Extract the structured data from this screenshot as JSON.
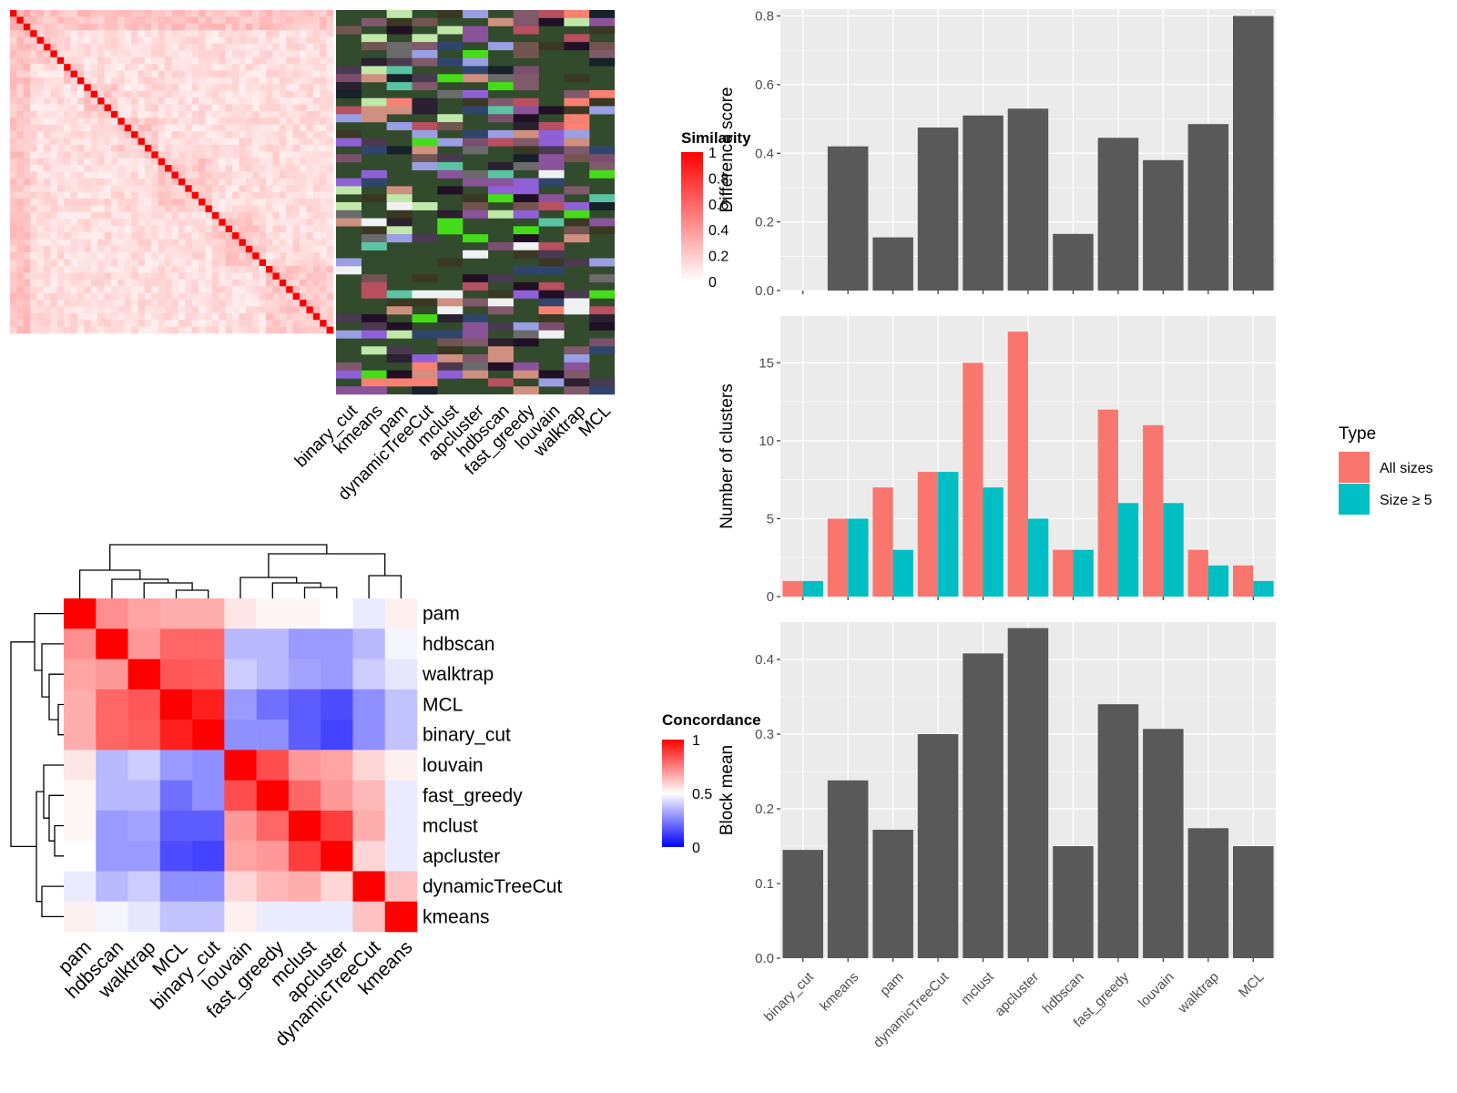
{
  "chart_data": [
    {
      "type": "heatmap",
      "panel": "cell-similarity",
      "legend": {
        "title": "Similarity",
        "ticks": [
          "1",
          "0.8",
          "0.6",
          "0.4",
          "0.2",
          "0"
        ],
        "range": [
          0,
          1
        ]
      },
      "colors": {
        "low": "#ffffff",
        "high": "#ff0000"
      },
      "n_cells": 48
    },
    {
      "type": "heatmap",
      "panel": "cluster-assignments",
      "columns": [
        "binary_cut",
        "kmeans",
        "pam",
        "dynamicTreeCut",
        "mclust",
        "apcluster",
        "hdbscan",
        "fast_greedy",
        "louvain",
        "walktrap",
        "MCL"
      ],
      "colors": {
        "background": "#314b2c",
        "palette": [
          "#fa8072",
          "#16212a",
          "#80596b",
          "#30456e",
          "#725550",
          "#3a3822",
          "#8c539d",
          "#eef2f3",
          "#d09080",
          "#7b4e6e",
          "#211025",
          "#9a9fe4",
          "#5bc4a2",
          "#c0e8a8",
          "#6b6b6b",
          "#44dd18",
          "#9060d8",
          "#2a2030",
          "#b85060",
          "#4a3a50"
        ]
      }
    },
    {
      "type": "heatmap",
      "panel": "method-concordance",
      "methods": [
        "pam",
        "hdbscan",
        "walktrap",
        "MCL",
        "binary_cut",
        "louvain",
        "fast_greedy",
        "mclust",
        "apcluster",
        "dynamicTreeCut",
        "kmeans"
      ],
      "values": [
        [
          1.0,
          0.72,
          0.68,
          0.66,
          0.66,
          0.55,
          0.52,
          0.52,
          0.5,
          0.46,
          0.53
        ],
        [
          0.72,
          1.0,
          0.7,
          0.8,
          0.8,
          0.36,
          0.36,
          0.3,
          0.3,
          0.36,
          0.48
        ],
        [
          0.68,
          0.7,
          1.0,
          0.83,
          0.82,
          0.4,
          0.36,
          0.32,
          0.3,
          0.4,
          0.45
        ],
        [
          0.66,
          0.8,
          0.83,
          1.0,
          0.94,
          0.3,
          0.22,
          0.18,
          0.15,
          0.28,
          0.38
        ],
        [
          0.66,
          0.8,
          0.82,
          0.94,
          1.0,
          0.28,
          0.28,
          0.18,
          0.13,
          0.28,
          0.38
        ],
        [
          0.55,
          0.36,
          0.4,
          0.3,
          0.28,
          1.0,
          0.85,
          0.7,
          0.68,
          0.58,
          0.53
        ],
        [
          0.52,
          0.36,
          0.36,
          0.22,
          0.28,
          0.85,
          1.0,
          0.8,
          0.7,
          0.64,
          0.46
        ],
        [
          0.52,
          0.3,
          0.32,
          0.18,
          0.18,
          0.7,
          0.8,
          1.0,
          0.88,
          0.66,
          0.46
        ],
        [
          0.5,
          0.3,
          0.3,
          0.15,
          0.13,
          0.68,
          0.7,
          0.88,
          1.0,
          0.58,
          0.46
        ],
        [
          0.46,
          0.36,
          0.4,
          0.28,
          0.28,
          0.58,
          0.64,
          0.66,
          0.58,
          1.0,
          0.62
        ],
        [
          0.53,
          0.48,
          0.45,
          0.38,
          0.38,
          0.53,
          0.46,
          0.46,
          0.46,
          0.62,
          1.0
        ]
      ],
      "legend": {
        "title": "Concordance",
        "ticks": [
          "1",
          "0.5",
          "0"
        ],
        "range": [
          0,
          1
        ]
      },
      "colors": {
        "low": "#0000ff",
        "mid": "#ffffff",
        "high": "#ff0000"
      }
    },
    {
      "type": "bar",
      "panel": "difference-score",
      "categories": [
        "binary_cut",
        "kmeans",
        "pam",
        "dynamicTreeCut",
        "mclust",
        "apcluster",
        "hdbscan",
        "fast_greedy",
        "louvain",
        "walktrap",
        "MCL"
      ],
      "values": [
        0,
        0.42,
        0.155,
        0.475,
        0.51,
        0.53,
        0.165,
        0.445,
        0.38,
        0.485,
        0.8
      ],
      "ylabel": "Difference score",
      "ylim": [
        0,
        0.82
      ],
      "yticks": [
        0,
        0.2,
        0.4,
        0.6,
        0.8
      ],
      "ytick_labels": [
        "0.0",
        "0.2",
        "0.4",
        "0.6",
        "0.8"
      ],
      "colors": {
        "bar": "#595959",
        "panel": "#ebebeb",
        "grid": "#ffffff"
      }
    },
    {
      "type": "bar",
      "panel": "number-of-clusters",
      "categories": [
        "binary_cut",
        "kmeans",
        "pam",
        "dynamicTreeCut",
        "mclust",
        "apcluster",
        "hdbscan",
        "fast_greedy",
        "louvain",
        "walktrap",
        "MCL"
      ],
      "series": [
        {
          "name": "All sizes",
          "values": [
            1,
            5,
            7,
            8,
            15,
            17,
            3,
            12,
            11,
            3,
            2
          ],
          "color": "#f8766d"
        },
        {
          "name": "Size ≥ 5",
          "values": [
            1,
            5,
            3,
            8,
            7,
            5,
            3,
            6,
            6,
            2,
            1
          ],
          "color": "#00bfc4"
        }
      ],
      "ylabel": "Number of clusters",
      "ylim": [
        0,
        18
      ],
      "yticks": [
        0,
        5,
        10,
        15
      ],
      "ytick_labels": [
        "0",
        "5",
        "10",
        "15"
      ],
      "legend": {
        "title": "Type",
        "placement": "right"
      },
      "colors": {
        "panel": "#ebebeb",
        "grid": "#ffffff"
      }
    },
    {
      "type": "bar",
      "panel": "block-mean",
      "categories": [
        "binary_cut",
        "kmeans",
        "pam",
        "dynamicTreeCut",
        "mclust",
        "apcluster",
        "hdbscan",
        "fast_greedy",
        "louvain",
        "walktrap",
        "MCL"
      ],
      "values": [
        0.145,
        0.238,
        0.172,
        0.3,
        0.408,
        0.442,
        0.15,
        0.34,
        0.307,
        0.174,
        0.15
      ],
      "ylabel": "Block mean",
      "ylim": [
        0,
        0.45
      ],
      "yticks": [
        0,
        0.1,
        0.2,
        0.3,
        0.4
      ],
      "ytick_labels": [
        "0.0",
        "0.1",
        "0.2",
        "0.3",
        "0.4"
      ],
      "colors": {
        "bar": "#595959",
        "panel": "#ebebeb",
        "grid": "#ffffff"
      }
    }
  ]
}
